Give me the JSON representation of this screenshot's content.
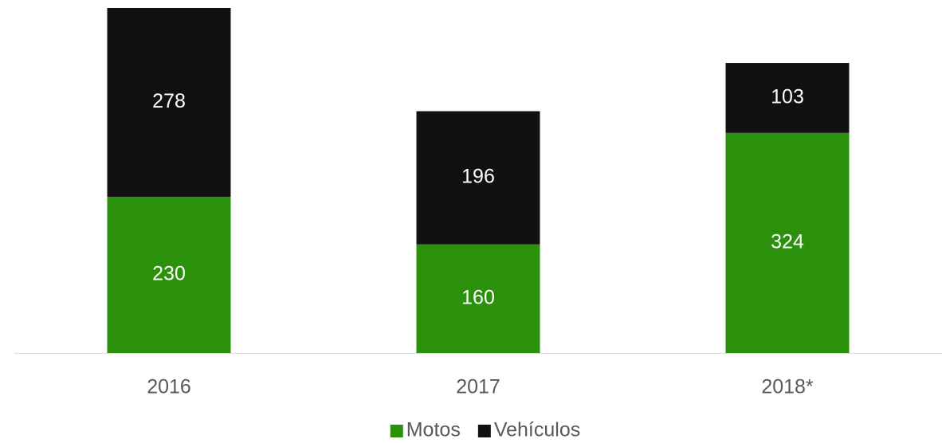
{
  "chart_data": {
    "type": "stacked_bar",
    "categories": [
      "2016",
      "2017",
      "2018*"
    ],
    "series": [
      {
        "name": "Motos",
        "color": "#2b910d",
        "values": [
          230,
          160,
          324
        ]
      },
      {
        "name": "Vehículos",
        "color": "#111111",
        "values": [
          278,
          196,
          103
        ]
      }
    ],
    "legend": "bottom"
  }
}
